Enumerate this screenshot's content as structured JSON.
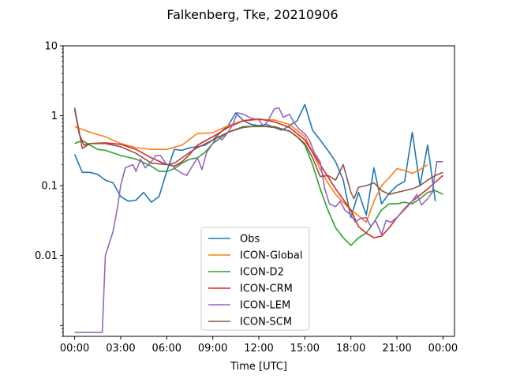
{
  "chart_data": {
    "type": "line",
    "title": "Falkenberg, Tke, 20210906",
    "xlabel": "Time [UTC]",
    "ylabel": "",
    "yscale": "log",
    "ylim": [
      0.0007,
      10
    ],
    "xlim": [
      -0.75,
      24.75
    ],
    "grid": false,
    "legend_position": "lower center",
    "x_ticks": [
      {
        "value": 0,
        "label": "00:00"
      },
      {
        "value": 3,
        "label": "03:00"
      },
      {
        "value": 6,
        "label": "06:00"
      },
      {
        "value": 9,
        "label": "09:00"
      },
      {
        "value": 12,
        "label": "12:00"
      },
      {
        "value": 15,
        "label": "15:00"
      },
      {
        "value": 18,
        "label": "18:00"
      },
      {
        "value": 21,
        "label": "21:00"
      },
      {
        "value": 24,
        "label": "00:00"
      }
    ],
    "y_ticks": [
      {
        "value": 0.001,
        "label": ""
      },
      {
        "value": 0.01,
        "label": "0.01"
      },
      {
        "value": 0.1,
        "label": "0.1"
      },
      {
        "value": 1,
        "label": "1"
      },
      {
        "value": 10,
        "label": "10"
      }
    ],
    "series": [
      {
        "name": "Obs",
        "color": "#1f77b4",
        "points": [
          [
            0,
            0.28
          ],
          [
            0.5,
            0.155
          ],
          [
            1,
            0.155
          ],
          [
            1.5,
            0.145
          ],
          [
            2,
            0.12
          ],
          [
            2.5,
            0.11
          ],
          [
            3,
            0.07
          ],
          [
            3.5,
            0.06
          ],
          [
            4,
            0.062
          ],
          [
            4.5,
            0.08
          ],
          [
            5,
            0.058
          ],
          [
            5.5,
            0.07
          ],
          [
            6,
            0.16
          ],
          [
            6.5,
            0.33
          ],
          [
            7,
            0.32
          ],
          [
            7.5,
            0.35
          ],
          [
            8,
            0.36
          ],
          [
            8.5,
            0.38
          ],
          [
            9,
            0.45
          ],
          [
            9.5,
            0.58
          ],
          [
            10,
            0.72
          ],
          [
            10.5,
            1.1
          ],
          [
            11,
            0.85
          ],
          [
            11.5,
            0.75
          ],
          [
            12,
            0.72
          ],
          [
            12.5,
            0.75
          ],
          [
            13,
            0.68
          ],
          [
            13.5,
            0.62
          ],
          [
            14,
            0.72
          ],
          [
            14.5,
            0.85
          ],
          [
            15,
            1.45
          ],
          [
            15.5,
            0.62
          ],
          [
            16,
            0.45
          ],
          [
            16.5,
            0.32
          ],
          [
            17,
            0.22
          ],
          [
            17.5,
            0.12
          ],
          [
            18,
            0.035
          ],
          [
            18.5,
            0.08
          ],
          [
            19,
            0.038
          ],
          [
            19.5,
            0.18
          ],
          [
            20,
            0.055
          ],
          [
            20.5,
            0.078
          ],
          [
            21,
            0.1
          ],
          [
            21.5,
            0.115
          ],
          [
            22,
            0.58
          ],
          [
            22.5,
            0.1
          ],
          [
            23,
            0.38
          ],
          [
            23.5,
            0.06
          ]
        ]
      },
      {
        "name": "ICON-Global",
        "color": "#ff7f0e",
        "points": [
          [
            0,
            0.7
          ],
          [
            1,
            0.58
          ],
          [
            2,
            0.5
          ],
          [
            3,
            0.4
          ],
          [
            4,
            0.35
          ],
          [
            5,
            0.33
          ],
          [
            6,
            0.33
          ],
          [
            7,
            0.38
          ],
          [
            8,
            0.56
          ],
          [
            9,
            0.57
          ],
          [
            10,
            0.72
          ],
          [
            11,
            0.85
          ],
          [
            12,
            0.88
          ],
          [
            13,
            0.87
          ],
          [
            14,
            0.75
          ],
          [
            15,
            0.5
          ],
          [
            15.5,
            0.3
          ],
          [
            16,
            0.17
          ],
          [
            16.5,
            0.11
          ],
          [
            17,
            0.075
          ],
          [
            17.5,
            0.058
          ],
          [
            18,
            0.045
          ],
          [
            18.5,
            0.037
          ],
          [
            19,
            0.03
          ],
          [
            19.5,
            0.06
          ],
          [
            20,
            0.1
          ],
          [
            20.5,
            0.13
          ],
          [
            21,
            0.175
          ],
          [
            21.5,
            0.165
          ],
          [
            22,
            0.15
          ],
          [
            22.5,
            0.17
          ],
          [
            23,
            0.2
          ]
        ]
      },
      {
        "name": "ICON-D2",
        "color": "#2ca02c",
        "points": [
          [
            0,
            0.4
          ],
          [
            0.5,
            0.44
          ],
          [
            1,
            0.38
          ],
          [
            1.5,
            0.33
          ],
          [
            2,
            0.32
          ],
          [
            3,
            0.27
          ],
          [
            4,
            0.24
          ],
          [
            5,
            0.19
          ],
          [
            5.5,
            0.16
          ],
          [
            6,
            0.16
          ],
          [
            6.5,
            0.175
          ],
          [
            7,
            0.21
          ],
          [
            7.5,
            0.24
          ],
          [
            8,
            0.25
          ],
          [
            8.5,
            0.3
          ],
          [
            9,
            0.4
          ],
          [
            10,
            0.58
          ],
          [
            11,
            0.7
          ],
          [
            12,
            0.7
          ],
          [
            13,
            0.7
          ],
          [
            14,
            0.6
          ],
          [
            14.5,
            0.5
          ],
          [
            15,
            0.38
          ],
          [
            15.5,
            0.2
          ],
          [
            16,
            0.09
          ],
          [
            16.5,
            0.045
          ],
          [
            17,
            0.025
          ],
          [
            17.5,
            0.018
          ],
          [
            18,
            0.014
          ],
          [
            18.5,
            0.018
          ],
          [
            19,
            0.021
          ],
          [
            19.5,
            0.03
          ],
          [
            20,
            0.045
          ],
          [
            20.5,
            0.055
          ],
          [
            21,
            0.055
          ],
          [
            21.5,
            0.058
          ],
          [
            22,
            0.055
          ],
          [
            22.5,
            0.065
          ],
          [
            23,
            0.08
          ],
          [
            23.5,
            0.085
          ],
          [
            24,
            0.075
          ]
        ]
      },
      {
        "name": "ICON-CRM",
        "color": "#d62728",
        "points": [
          [
            0,
            1.25
          ],
          [
            0.3,
            0.55
          ],
          [
            0.6,
            0.38
          ],
          [
            1,
            0.4
          ],
          [
            2,
            0.41
          ],
          [
            3,
            0.39
          ],
          [
            4,
            0.33
          ],
          [
            5,
            0.25
          ],
          [
            6,
            0.2
          ],
          [
            6.5,
            0.19
          ],
          [
            7,
            0.22
          ],
          [
            7.5,
            0.28
          ],
          [
            8,
            0.38
          ],
          [
            9,
            0.5
          ],
          [
            10,
            0.68
          ],
          [
            11,
            0.85
          ],
          [
            12,
            0.9
          ],
          [
            13,
            0.82
          ],
          [
            14,
            0.68
          ],
          [
            15,
            0.45
          ],
          [
            16,
            0.2
          ],
          [
            17,
            0.09
          ],
          [
            18,
            0.045
          ],
          [
            18.5,
            0.026
          ],
          [
            19,
            0.021
          ],
          [
            19.5,
            0.018
          ],
          [
            20,
            0.019
          ],
          [
            20.5,
            0.025
          ],
          [
            21,
            0.035
          ],
          [
            22,
            0.06
          ],
          [
            23,
            0.09
          ],
          [
            24,
            0.14
          ]
        ]
      },
      {
        "name": "ICON-LEM",
        "color": "#9467bd",
        "points": [
          [
            0,
            0.0008
          ],
          [
            0.5,
            0.0008
          ],
          [
            1,
            0.0008
          ],
          [
            1.5,
            0.0008
          ],
          [
            1.8,
            0.0008
          ],
          [
            2,
            0.01
          ],
          [
            2.5,
            0.022
          ],
          [
            2.8,
            0.05
          ],
          [
            3,
            0.1
          ],
          [
            3.3,
            0.18
          ],
          [
            3.8,
            0.2
          ],
          [
            4,
            0.16
          ],
          [
            4.3,
            0.24
          ],
          [
            4.6,
            0.18
          ],
          [
            5,
            0.22
          ],
          [
            5.3,
            0.27
          ],
          [
            5.6,
            0.27
          ],
          [
            6,
            0.2
          ],
          [
            6.3,
            0.2
          ],
          [
            6.6,
            0.17
          ],
          [
            7,
            0.15
          ],
          [
            7.3,
            0.14
          ],
          [
            7.6,
            0.18
          ],
          [
            8,
            0.25
          ],
          [
            8.3,
            0.17
          ],
          [
            8.6,
            0.3
          ],
          [
            9,
            0.4
          ],
          [
            9.3,
            0.52
          ],
          [
            9.6,
            0.45
          ],
          [
            10,
            0.58
          ],
          [
            10.3,
            0.74
          ],
          [
            10.6,
            1.1
          ],
          [
            11,
            1.05
          ],
          [
            11.5,
            0.92
          ],
          [
            12,
            0.88
          ],
          [
            12.3,
            0.7
          ],
          [
            12.6,
            0.85
          ],
          [
            13,
            1.25
          ],
          [
            13.3,
            1.3
          ],
          [
            13.6,
            0.95
          ],
          [
            14,
            1.05
          ],
          [
            14.3,
            0.8
          ],
          [
            14.6,
            0.65
          ],
          [
            15,
            0.55
          ],
          [
            15.3,
            0.45
          ],
          [
            15.6,
            0.3
          ],
          [
            16,
            0.22
          ],
          [
            16.3,
            0.09
          ],
          [
            16.6,
            0.055
          ],
          [
            17,
            0.05
          ],
          [
            17.3,
            0.06
          ],
          [
            17.6,
            0.045
          ],
          [
            18,
            0.038
          ],
          [
            18.3,
            0.03
          ],
          [
            18.6,
            0.034
          ],
          [
            19,
            0.035
          ],
          [
            19.3,
            0.026
          ],
          [
            19.6,
            0.032
          ],
          [
            20,
            0.02
          ],
          [
            20.3,
            0.032
          ],
          [
            20.6,
            0.03
          ],
          [
            21,
            0.035
          ],
          [
            21.3,
            0.042
          ],
          [
            21.6,
            0.05
          ],
          [
            22,
            0.06
          ],
          [
            22.3,
            0.075
          ],
          [
            22.6,
            0.053
          ],
          [
            23,
            0.065
          ],
          [
            23.3,
            0.08
          ],
          [
            23.6,
            0.22
          ],
          [
            24,
            0.22
          ]
        ]
      },
      {
        "name": "ICON-SCM",
        "color": "#8c564b",
        "points": [
          [
            0,
            1.3
          ],
          [
            0.5,
            0.34
          ],
          [
            1,
            0.4
          ],
          [
            2,
            0.4
          ],
          [
            3,
            0.36
          ],
          [
            4,
            0.29
          ],
          [
            5,
            0.21
          ],
          [
            6,
            0.2
          ],
          [
            6.5,
            0.21
          ],
          [
            7,
            0.25
          ],
          [
            7.5,
            0.3
          ],
          [
            8,
            0.35
          ],
          [
            9,
            0.45
          ],
          [
            10,
            0.58
          ],
          [
            11,
            0.68
          ],
          [
            12,
            0.72
          ],
          [
            13,
            0.68
          ],
          [
            14,
            0.6
          ],
          [
            14.5,
            0.5
          ],
          [
            15,
            0.4
          ],
          [
            15.5,
            0.25
          ],
          [
            16,
            0.135
          ],
          [
            16.5,
            0.14
          ],
          [
            17,
            0.12
          ],
          [
            17.5,
            0.2
          ],
          [
            18,
            0.08
          ],
          [
            18.2,
            0.065
          ],
          [
            18.5,
            0.095
          ],
          [
            19,
            0.1
          ],
          [
            19.5,
            0.11
          ],
          [
            20,
            0.085
          ],
          [
            20.5,
            0.075
          ],
          [
            21,
            0.08
          ],
          [
            21.5,
            0.085
          ],
          [
            22,
            0.09
          ],
          [
            22.5,
            0.1
          ],
          [
            23,
            0.12
          ],
          [
            23.5,
            0.14
          ],
          [
            24,
            0.155
          ]
        ]
      }
    ]
  }
}
